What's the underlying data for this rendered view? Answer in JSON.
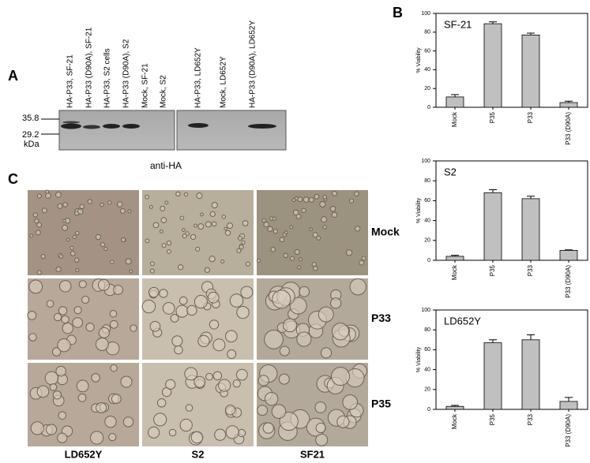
{
  "panels": {
    "a": "A",
    "b": "B",
    "c": "C"
  },
  "blot": {
    "lanes": [
      "HA-P33, SF-21",
      "HA-P33 (D90A),  SF-21",
      "HA-P33, S2 cells",
      "HA-P33 (D90A), S2",
      "Mock, SF-21",
      "Mock, S2",
      "HA-P33, LD652Y",
      "Mock, LD652Y",
      "HA-P33 (D90A), LD652Y"
    ],
    "markers": [
      "35.8",
      "29.2"
    ],
    "unit": "kDa",
    "antibody": "anti-HA"
  },
  "micrographs": {
    "rows": [
      "Mock",
      "P33",
      "P35"
    ],
    "columns": [
      "LD652Y",
      "S2",
      "SF21"
    ]
  },
  "chart_data": [
    {
      "type": "bar",
      "title": "SF-21",
      "y_label": "% Viability",
      "categories": [
        "Mock",
        "P35",
        "P33",
        "P33 (D90A)"
      ],
      "values": [
        11,
        89,
        77,
        5
      ],
      "errors": [
        2.5,
        2,
        2,
        1.5
      ],
      "color": "#c0c0c0",
      "ylim": [
        0,
        100
      ],
      "yticks": [
        0,
        20,
        40,
        60,
        80,
        100
      ]
    },
    {
      "type": "bar",
      "title": "S2",
      "y_label": "% Viability",
      "categories": [
        "Mock",
        "P35",
        "P33",
        "P33 (D90A)"
      ],
      "values": [
        4,
        68,
        62,
        10
      ],
      "errors": [
        1,
        3,
        2.5,
        0.5
      ],
      "color": "#c0c0c0",
      "ylim": [
        0,
        100
      ],
      "yticks": [
        0,
        20,
        40,
        60,
        80,
        100
      ]
    },
    {
      "type": "bar",
      "title": "LD652Y",
      "y_label": "% Viability",
      "categories": [
        "Mock",
        "P35",
        "P33",
        "P33 (D90A)"
      ],
      "values": [
        3,
        67,
        70,
        8
      ],
      "errors": [
        1,
        3,
        5,
        4
      ],
      "color": "#c0c0c0",
      "ylim": [
        0,
        100
      ],
      "yticks": [
        0,
        20,
        40,
        60,
        80,
        100
      ]
    }
  ]
}
